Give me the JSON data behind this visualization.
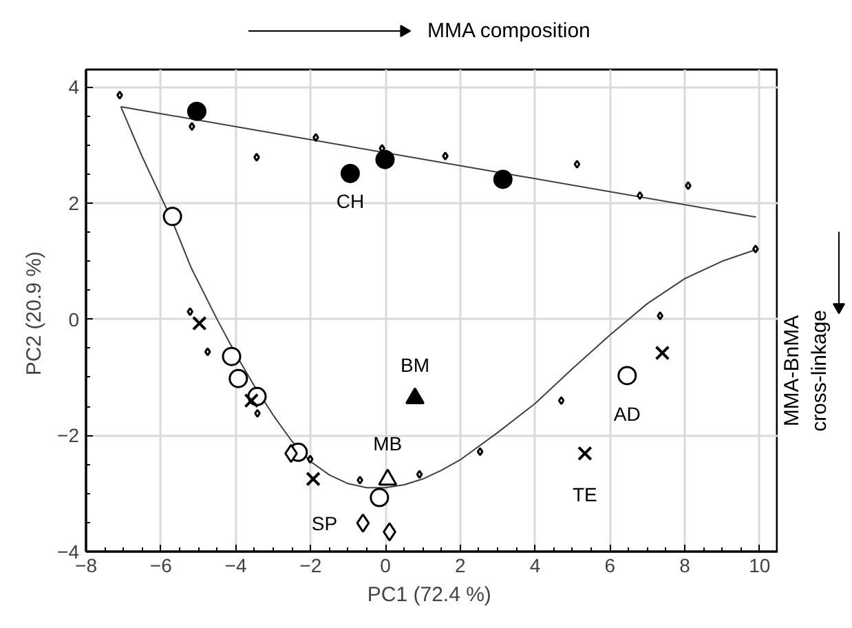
{
  "chart_data": {
    "type": "scatter",
    "xlabel": "PC1  (72.4 %)",
    "ylabel": "PC2  (20.9 %)",
    "xlim": [
      -8,
      10.5
    ],
    "ylim": [
      -4,
      4.3
    ],
    "xticks": [
      -8,
      -6,
      -4,
      -2,
      0,
      2,
      4,
      6,
      8,
      10
    ],
    "yticks": [
      -4,
      -2,
      0,
      2,
      4
    ],
    "grid": true,
    "series": [
      {
        "type": "line",
        "color": "#404040",
        "marker": "none",
        "x": [
          -7.07,
          9.9
        ],
        "values": [
          3.66,
          1.76
        ]
      },
      {
        "type": "line",
        "color": "#404040",
        "marker": "none",
        "x": [
          -7.07,
          -6.5,
          -5.7,
          -5.2,
          -4.5,
          -4,
          -3.5,
          -3,
          -2.5,
          -2,
          -1.5,
          -1,
          -0.5,
          0,
          0.5,
          1,
          1.5,
          2,
          3,
          4,
          5,
          6,
          7,
          8,
          9,
          9.9
        ],
        "values": [
          3.66,
          2.8,
          1.7,
          0.9,
          0.0,
          -0.6,
          -1.15,
          -1.65,
          -2.1,
          -2.45,
          -2.68,
          -2.83,
          -2.9,
          -2.9,
          -2.85,
          -2.75,
          -2.6,
          -2.42,
          -1.95,
          -1.45,
          -0.85,
          -0.27,
          0.27,
          0.7,
          1.0,
          1.2
        ]
      },
      {
        "color": "#000000",
        "marker": "diamond",
        "x": [
          -7.1,
          -5.17,
          -3.44,
          -1.86,
          -0.09,
          1.6,
          5.12,
          6.8,
          8.09,
          9.89,
          7.34,
          4.7,
          2.53,
          0.91,
          -0.68,
          -2.01,
          -3.42,
          -4.75,
          -5.22
        ],
        "values": [
          3.86,
          3.32,
          2.79,
          3.13,
          2.94,
          2.81,
          2.67,
          2.13,
          2.3,
          1.21,
          0.06,
          -1.4,
          -2.28,
          -2.67,
          -2.77,
          -2.41,
          -1.62,
          -0.56,
          0.13
        ]
      },
      {
        "color": "#000000",
        "marker": "circle",
        "x": [
          -5.04,
          -0.94,
          -0.01,
          3.14
        ],
        "values": [
          3.58,
          2.51,
          2.75,
          2.41
        ]
      },
      {
        "color": "#000000",
        "marker": "circle",
        "x": [
          -5.69,
          -4.11,
          -3.93,
          -3.43,
          -2.33,
          -0.16,
          6.46
        ],
        "values": [
          1.77,
          -0.64,
          -1.02,
          -1.33,
          -2.29,
          -3.07,
          -0.97
        ]
      },
      {
        "color": "#000000",
        "marker": "cross",
        "x": [
          -4.97,
          -3.58,
          -1.93,
          5.33,
          7.4
        ],
        "values": [
          -0.07,
          -1.4,
          -2.75,
          -2.31,
          -0.58
        ]
      },
      {
        "color": "#000000",
        "marker": "diamond",
        "x": [
          -2.52,
          -0.6,
          0.11
        ],
        "values": [
          -2.31,
          -3.51,
          -3.66
        ]
      },
      {
        "color": "#000000",
        "marker": "triangle",
        "x": [
          0.06
        ],
        "values": [
          -2.76
        ]
      },
      {
        "color": "#000000",
        "marker": "triangle",
        "x": [
          0.79
        ],
        "values": [
          -1.36
        ]
      }
    ],
    "annotations": [
      {
        "text": "CH",
        "x": -0.94,
        "y": 2.51
      },
      {
        "text": "BM",
        "x": 0.79,
        "y": -1.36
      },
      {
        "text": "MB",
        "x": 0.06,
        "y": -2.76
      },
      {
        "text": "SP",
        "x": -0.6,
        "y": -3.51
      },
      {
        "text": "AD",
        "x": 6.46,
        "y": -0.97
      },
      {
        "text": "TE",
        "x": 5.33,
        "y": -2.31
      },
      "MMA composition",
      "MMA-BnMA\ncross-linkage"
    ]
  }
}
